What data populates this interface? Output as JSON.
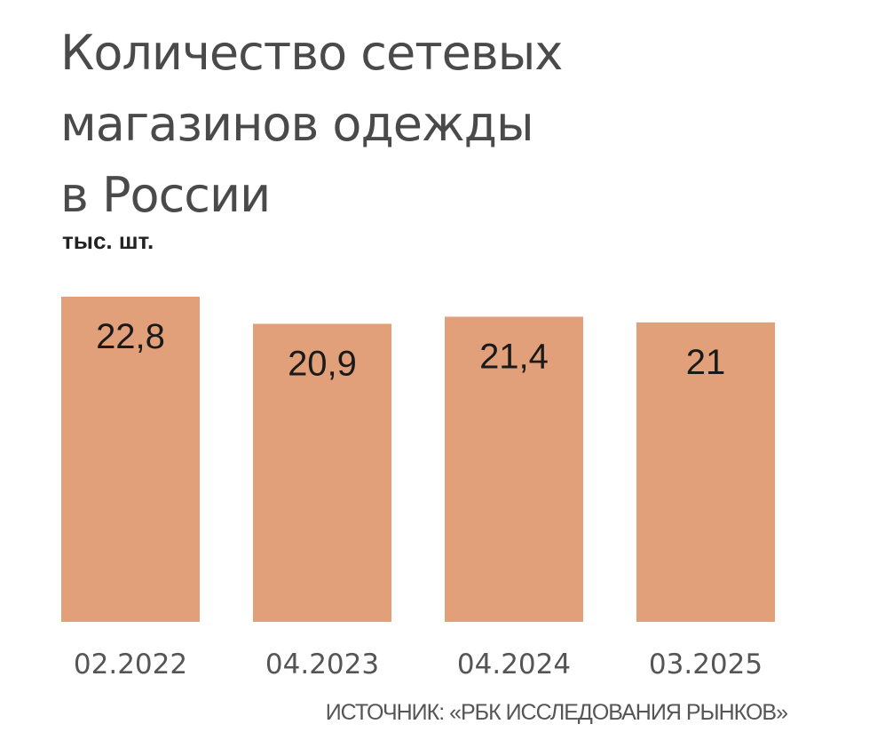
{
  "title_lines": [
    "Количество сетевых",
    "магазинов одежды",
    "в России"
  ],
  "unit": "тыс. шт.",
  "source": "ИСТОЧНИК: «РБК ИССЛЕДОВАНИЯ РЫНКОВ»",
  "colors": {
    "bar": "#E2A07A",
    "value_text": "#1a1a1a",
    "category_text": "#555555"
  },
  "chart_data": {
    "type": "bar",
    "title": "Количество сетевых магазинов одежды в России",
    "ylabel": "тыс. шт.",
    "xlabel": "",
    "categories": [
      "02.2022",
      "04.2023",
      "04.2024",
      "03.2025"
    ],
    "values": [
      22.8,
      20.9,
      21.4,
      21
    ],
    "value_labels": [
      "22,8",
      "20,9",
      "21,4",
      "21"
    ],
    "ylim": [
      0,
      22.8
    ],
    "grid": false,
    "legend": "none"
  }
}
